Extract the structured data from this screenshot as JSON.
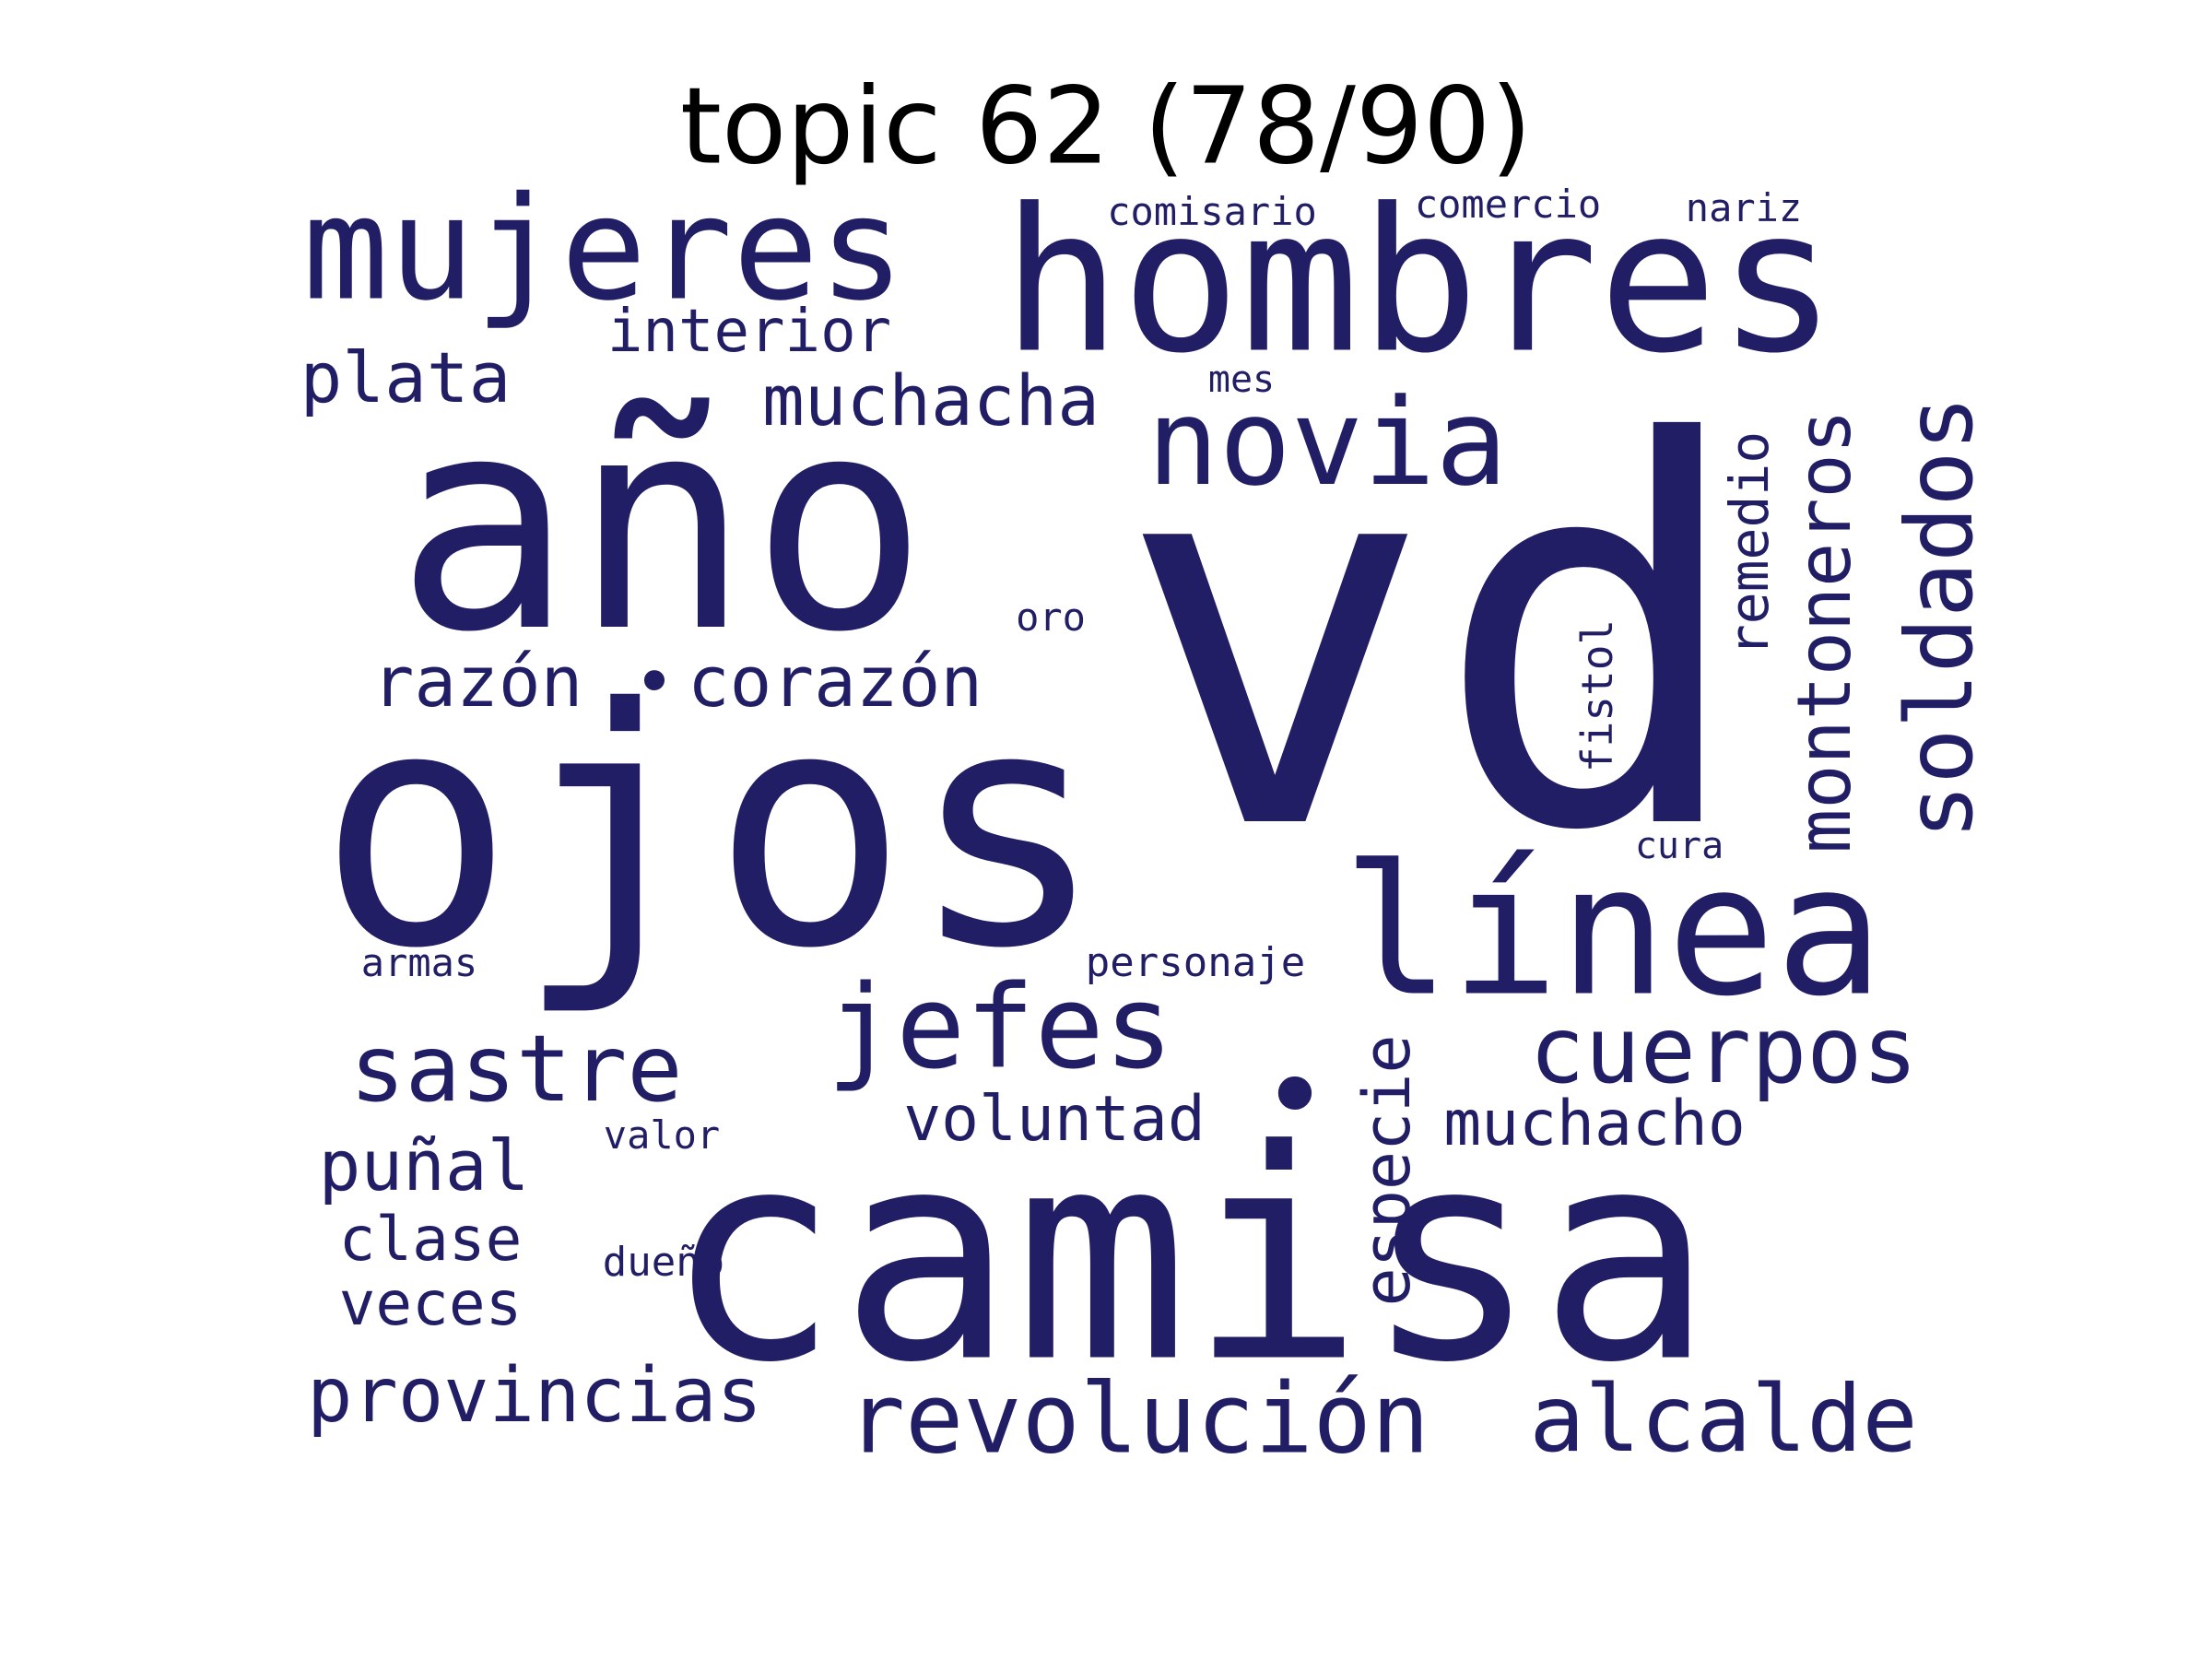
{
  "figure": {
    "title": "topic 62 (78/90)",
    "background_color": "#ffffff",
    "title_color": "#000000",
    "word_color": "#221e66",
    "orientation_note_vertical_words": [
      "soldados",
      "montoneros",
      "remedio",
      "especie",
      "fistol"
    ]
  },
  "words": [
    {
      "text": "vd"
    },
    {
      "text": "ojos"
    },
    {
      "text": "camisa"
    },
    {
      "text": "año"
    },
    {
      "text": "hombres"
    },
    {
      "text": "línea"
    },
    {
      "text": "mujeres"
    },
    {
      "text": "novia"
    },
    {
      "text": "jefes"
    },
    {
      "text": "soldados"
    },
    {
      "text": "revolución"
    },
    {
      "text": "cuerpos"
    },
    {
      "text": "alcalde"
    },
    {
      "text": "sastre"
    },
    {
      "text": "provincias"
    },
    {
      "text": "montoneros"
    },
    {
      "text": "corazón"
    },
    {
      "text": "razón"
    },
    {
      "text": "muchacha"
    },
    {
      "text": "muchacho"
    },
    {
      "text": "voluntad"
    },
    {
      "text": "puñal"
    },
    {
      "text": "plata"
    },
    {
      "text": "especie"
    },
    {
      "text": "interior"
    },
    {
      "text": "clase"
    },
    {
      "text": "veces"
    },
    {
      "text": "remedio"
    },
    {
      "text": "fistol"
    },
    {
      "text": "comisario"
    },
    {
      "text": "comercio"
    },
    {
      "text": "nariz"
    },
    {
      "text": "personaje"
    },
    {
      "text": "dueño"
    },
    {
      "text": "valor"
    },
    {
      "text": "oro"
    },
    {
      "text": "mes"
    },
    {
      "text": "armas"
    },
    {
      "text": "cura"
    },
    {
      "text": "•"
    },
    {
      "text": "•"
    }
  ]
}
